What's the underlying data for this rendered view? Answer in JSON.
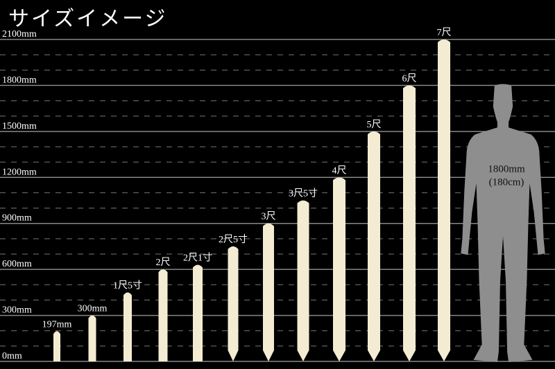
{
  "title": "サイズイメージ",
  "chart_data": {
    "type": "bar",
    "title": "サイズイメージ",
    "unit": "mm",
    "ylim": [
      0,
      2100
    ],
    "yticks": [
      0,
      300,
      600,
      900,
      1200,
      1500,
      1800,
      2100
    ],
    "ytick_labels": [
      "0mm",
      "300mm",
      "600mm",
      "900mm",
      "1200mm",
      "1500mm",
      "1800mm",
      "2100mm"
    ],
    "minor_grid_step": 100,
    "grid": true,
    "categories": [
      "197mm",
      "300mm",
      "1尺5寸",
      "2尺",
      "2尺1寸",
      "2尺5寸",
      "3尺",
      "3尺5寸",
      "4尺",
      "5尺",
      "6尺",
      "7尺"
    ],
    "values": [
      197,
      300,
      450,
      600,
      630,
      750,
      900,
      1050,
      1200,
      1500,
      1800,
      2100
    ],
    "bar_color": "#f3ecd2",
    "reference": {
      "label_line1": "1800mm",
      "label_line2": "(180cm)",
      "value": 1800,
      "color": "#8e8e8e"
    }
  }
}
